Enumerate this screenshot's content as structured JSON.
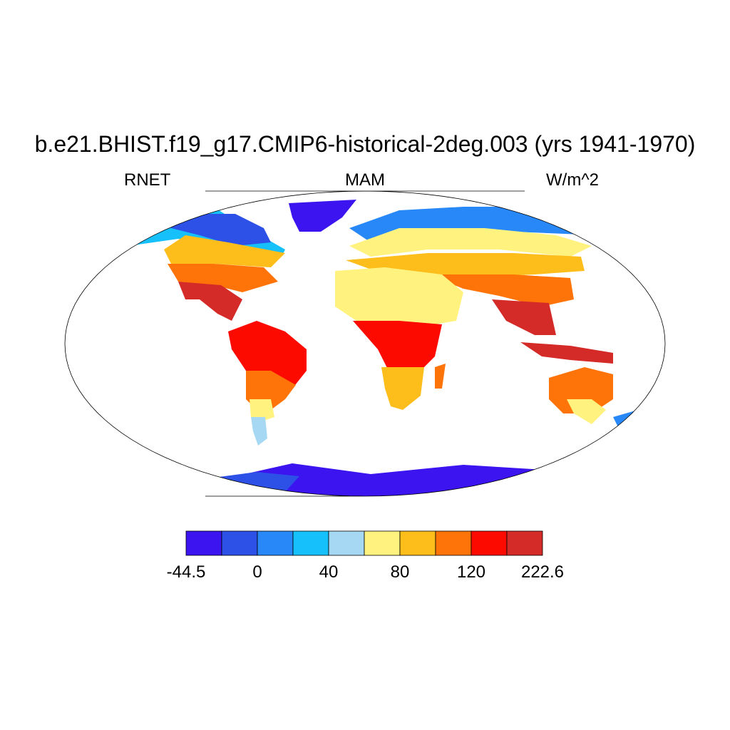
{
  "title": "b.e21.BHIST.f19_g17.CMIP6-historical-2deg.003 (yrs 1941-1970)",
  "subtitle_left": "RNET",
  "subtitle_center": "MAM",
  "subtitle_right": "W/m^2",
  "map": {
    "projection": "robinson",
    "background": "#ffffff"
  },
  "colorbar": {
    "colors": [
      "#3c14f0",
      "#2d50e6",
      "#2888f8",
      "#16c0fb",
      "#a6d8f4",
      "#fff27e",
      "#fdbd1b",
      "#ff7408",
      "#fc0a00",
      "#d42a28"
    ],
    "labels": [
      {
        "text": "-44.5",
        "index": 0
      },
      {
        "text": "0",
        "index": 2
      },
      {
        "text": "40",
        "index": 4
      },
      {
        "text": "80",
        "index": 6
      },
      {
        "text": "120",
        "index": 8
      },
      {
        "text": "222.6",
        "index": 10
      }
    ]
  }
}
